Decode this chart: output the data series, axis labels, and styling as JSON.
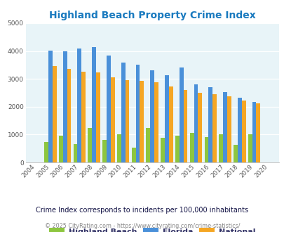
{
  "title": "Highland Beach Property Crime Index",
  "years": [
    "2004",
    "2005",
    "2006",
    "2007",
    "2008",
    "2009",
    "2010",
    "2011",
    "2012",
    "2013",
    "2014",
    "2015",
    "2016",
    "2017",
    "2018",
    "2019",
    "2020"
  ],
  "highland_beach": [
    0,
    720,
    960,
    650,
    1250,
    820,
    1000,
    520,
    1250,
    880,
    960,
    1050,
    920,
    1020,
    630,
    1020,
    0
  ],
  "florida": [
    0,
    4020,
    4000,
    4080,
    4140,
    3850,
    3580,
    3510,
    3300,
    3120,
    3420,
    2800,
    2700,
    2520,
    2320,
    2160,
    0
  ],
  "national": [
    0,
    3450,
    3350,
    3250,
    3220,
    3050,
    2950,
    2920,
    2880,
    2730,
    2600,
    2490,
    2460,
    2380,
    2220,
    2130,
    0
  ],
  "highland_beach_color": "#8dc63f",
  "florida_color": "#4a90d9",
  "national_color": "#f5a623",
  "plot_bg_color": "#e8f4f8",
  "fig_bg_color": "#ffffff",
  "title_color": "#1a7abf",
  "legend_text_color": "#333366",
  "note_color": "#111144",
  "copyright_color": "#888888",
  "ylim": [
    0,
    5000
  ],
  "yticks": [
    0,
    1000,
    2000,
    3000,
    4000,
    5000
  ],
  "legend_labels": [
    "Highland Beach",
    "Florida",
    "National"
  ],
  "note": "Crime Index corresponds to incidents per 100,000 inhabitants",
  "copyright": "© 2025 CityRating.com - https://www.cityrating.com/crime-statistics/"
}
